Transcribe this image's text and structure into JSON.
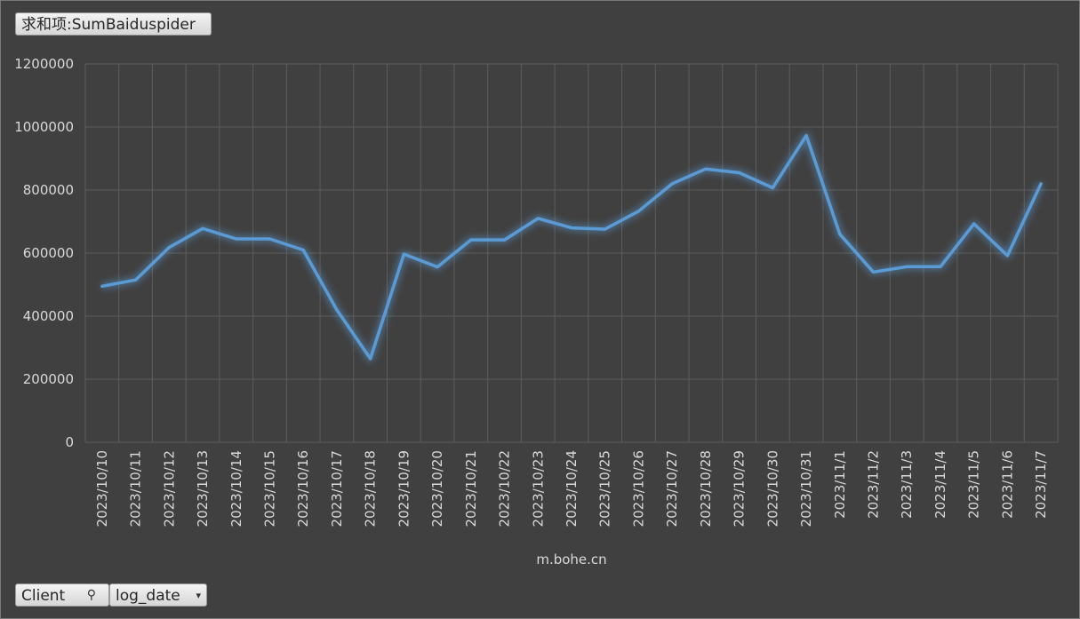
{
  "colors": {
    "background": "#404040",
    "grid": "#5d5d5d",
    "line": "#5b9bd5",
    "text": "#d9d9d9"
  },
  "pivot": {
    "value_field_label": "求和项:SumBaiduspider",
    "row_fields": [
      {
        "label": "Client",
        "icon": "filter-icon"
      },
      {
        "label": "log_date",
        "icon": "dropdown-arrow-icon"
      }
    ]
  },
  "chart_data": {
    "type": "line",
    "xlabel": "m.bohe.cn",
    "ylabel": "",
    "ylim": [
      0,
      1200000
    ],
    "yticks": [
      0,
      200000,
      400000,
      600000,
      800000,
      1000000,
      1200000
    ],
    "grid": true,
    "categories": [
      "2023/10/10",
      "2023/10/11",
      "2023/10/12",
      "2023/10/13",
      "2023/10/14",
      "2023/10/15",
      "2023/10/16",
      "2023/10/17",
      "2023/10/18",
      "2023/10/19",
      "2023/10/20",
      "2023/10/21",
      "2023/10/22",
      "2023/10/23",
      "2023/10/24",
      "2023/10/25",
      "2023/10/26",
      "2023/10/27",
      "2023/10/28",
      "2023/10/29",
      "2023/10/30",
      "2023/10/31",
      "2023/11/1",
      "2023/11/2",
      "2023/11/3",
      "2023/11/4",
      "2023/11/5",
      "2023/11/6",
      "2023/11/7"
    ],
    "series": [
      {
        "values": [
          495000,
          515000,
          618000,
          678000,
          645000,
          645000,
          610000,
          420000,
          265000,
          597000,
          556000,
          642000,
          642000,
          710000,
          680000,
          676000,
          733000,
          820000,
          867000,
          855000,
          807000,
          973000,
          660000,
          540000,
          557000,
          557000,
          693000,
          592000,
          820000
        ]
      }
    ]
  }
}
